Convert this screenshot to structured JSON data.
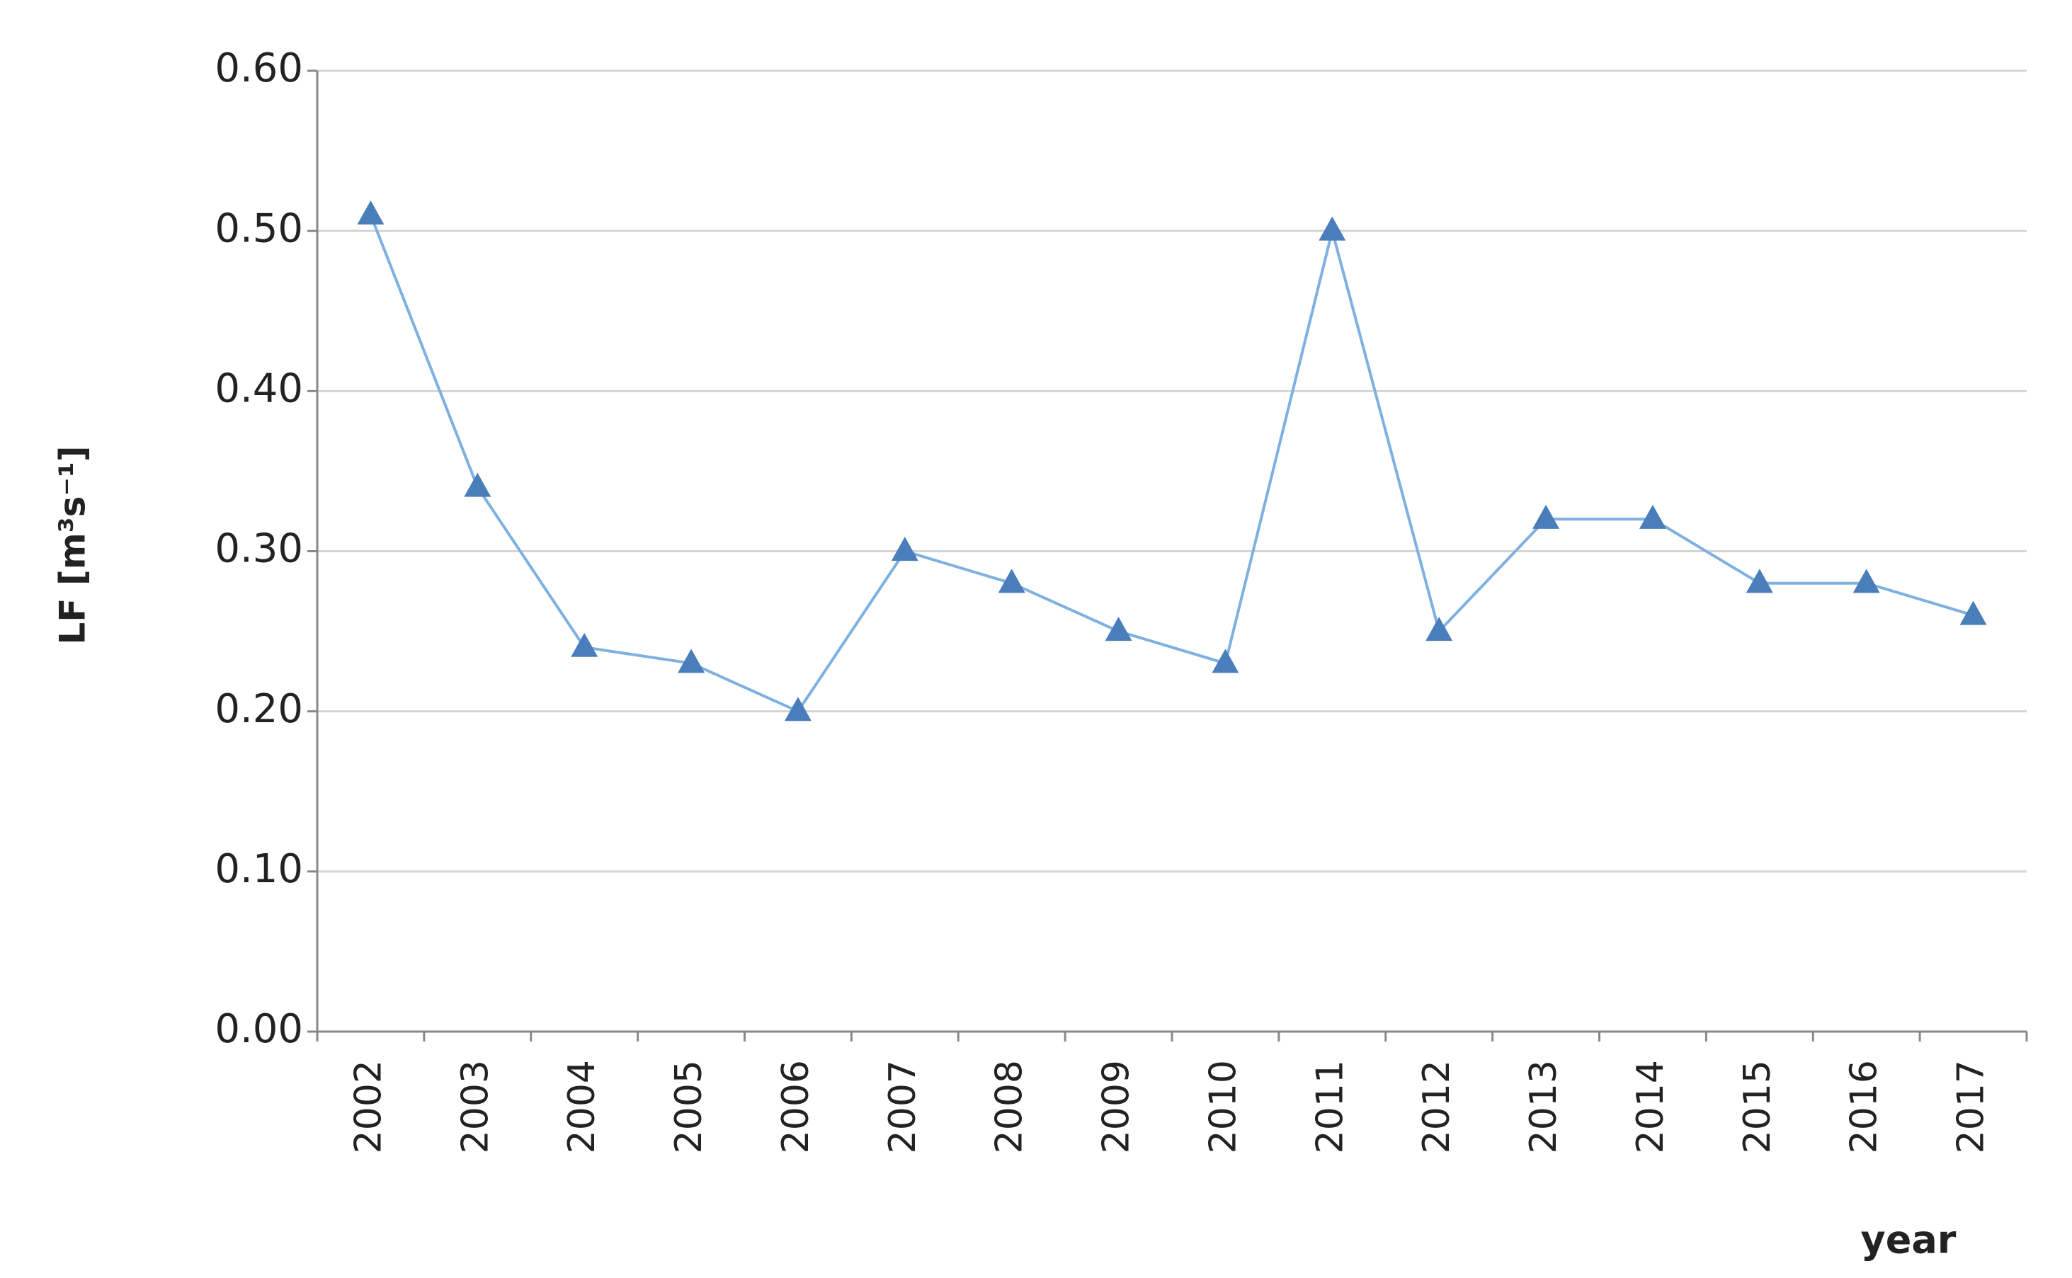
{
  "chart_data": {
    "type": "line",
    "y_label": "LF [m³s⁻¹]",
    "x_label": "year",
    "categories": [
      "2002",
      "2003",
      "2004",
      "2005",
      "2006",
      "2007",
      "2008",
      "2009",
      "2010",
      "2011",
      "2012",
      "2013",
      "2014",
      "2015",
      "2016",
      "2017"
    ],
    "series": [
      {
        "name": "LF",
        "color": "#4a7ebb",
        "line_color": "#7eb0e0",
        "values": [
          0.51,
          0.34,
          0.24,
          0.23,
          0.2,
          0.3,
          0.28,
          0.25,
          0.23,
          0.5,
          0.25,
          0.32,
          0.32,
          0.28,
          0.28,
          0.26
        ]
      }
    ],
    "ylim": [
      0,
      0.6
    ],
    "yticks": [
      {
        "value": 0,
        "label": "0.00"
      },
      {
        "value": 0.1,
        "label": "0.10"
      },
      {
        "value": 0.2,
        "label": "0.20"
      },
      {
        "value": 0.3,
        "label": "0.30"
      },
      {
        "value": 0.4,
        "label": "0.40"
      },
      {
        "value": 0.5,
        "label": "0.50"
      },
      {
        "value": 0.6,
        "label": "0.60"
      }
    ],
    "grid": true
  }
}
